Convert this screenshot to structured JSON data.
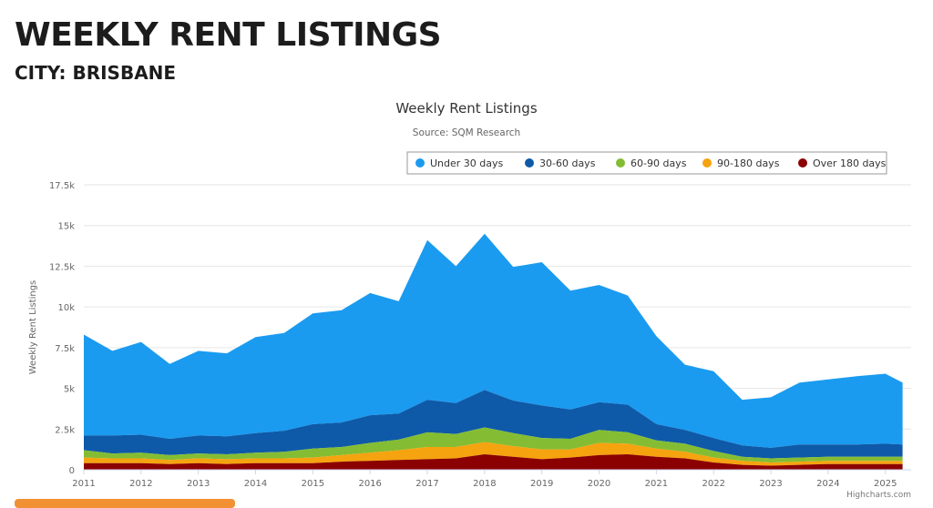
{
  "page": {
    "title": "WEEKLY RENT LISTINGS",
    "subtitle": "CITY: BRISBANE"
  },
  "chart_data": {
    "type": "area",
    "stacked": true,
    "title": "Weekly Rent Listings",
    "subtitle": "Source: SQM Research",
    "xlabel": "",
    "ylabel": "Weekly Rent Listings",
    "xlim": [
      2011,
      2025.45
    ],
    "ylim": [
      0,
      17500
    ],
    "y_ticks": [
      0,
      2500,
      5000,
      7500,
      10000,
      12500,
      15000,
      17500
    ],
    "y_tick_labels": [
      "0",
      "2.5k",
      "5k",
      "7.5k",
      "10k",
      "12.5k",
      "15k",
      "17.5k"
    ],
    "x_ticks": [
      2011,
      2012,
      2013,
      2014,
      2015,
      2016,
      2017,
      2018,
      2019,
      2020,
      2021,
      2022,
      2023,
      2024,
      2025
    ],
    "x_tick_labels": [
      "2011",
      "2012",
      "2013",
      "2014",
      "2015",
      "2016",
      "2017",
      "2018",
      "2019",
      "2020",
      "2021",
      "2022",
      "2023",
      "2024",
      "2025"
    ],
    "grid": true,
    "legend_position": "top-right",
    "credits": "Highcharts.com",
    "x": [
      2011.0,
      2011.5,
      2012.0,
      2012.5,
      2013.0,
      2013.5,
      2014.0,
      2014.5,
      2015.0,
      2015.5,
      2016.0,
      2016.5,
      2017.0,
      2017.5,
      2018.0,
      2018.5,
      2019.0,
      2019.5,
      2020.0,
      2020.5,
      2021.0,
      2021.5,
      2022.0,
      2022.5,
      2023.0,
      2023.5,
      2024.0,
      2024.5,
      2025.0,
      2025.3
    ],
    "series": [
      {
        "name": "Under 30 days",
        "color": "#1a9bf0",
        "values": [
          6200,
          5200,
          5700,
          4600,
          5200,
          5100,
          5900,
          6000,
          6800,
          6900,
          7500,
          6900,
          9800,
          8400,
          9600,
          8200,
          8800,
          7300,
          7200,
          6700,
          5400,
          4000,
          4100,
          2800,
          3100,
          3800,
          4000,
          4200,
          4300,
          3800
        ]
      },
      {
        "name": "30-60 days",
        "color": "#0e5aa8",
        "values": [
          900,
          1100,
          1100,
          1000,
          1100,
          1100,
          1200,
          1300,
          1500,
          1500,
          1700,
          1600,
          2000,
          1900,
          2300,
          2000,
          2000,
          1800,
          1700,
          1700,
          1000,
          850,
          800,
          700,
          650,
          800,
          750,
          750,
          800,
          750
        ]
      },
      {
        "name": "60-90 days",
        "color": "#84bd33",
        "values": [
          450,
          300,
          350,
          300,
          300,
          300,
          350,
          400,
          550,
          500,
          600,
          650,
          900,
          800,
          900,
          800,
          700,
          650,
          800,
          700,
          500,
          500,
          400,
          250,
          250,
          250,
          250,
          250,
          250,
          250
        ]
      },
      {
        "name": "90-180 days",
        "color": "#f5a30f",
        "values": [
          350,
          300,
          300,
          250,
          300,
          300,
          300,
          300,
          350,
          400,
          500,
          600,
          750,
          700,
          750,
          650,
          600,
          500,
          750,
          650,
          500,
          400,
          300,
          250,
          200,
          200,
          200,
          200,
          200,
          200
        ]
      },
      {
        "name": "Over 180 days",
        "color": "#8b0000",
        "values": [
          400,
          400,
          400,
          350,
          400,
          350,
          400,
          400,
          400,
          500,
          550,
          600,
          650,
          700,
          950,
          800,
          650,
          750,
          900,
          950,
          800,
          700,
          450,
          300,
          250,
          300,
          350,
          350,
          350,
          350
        ]
      }
    ]
  }
}
